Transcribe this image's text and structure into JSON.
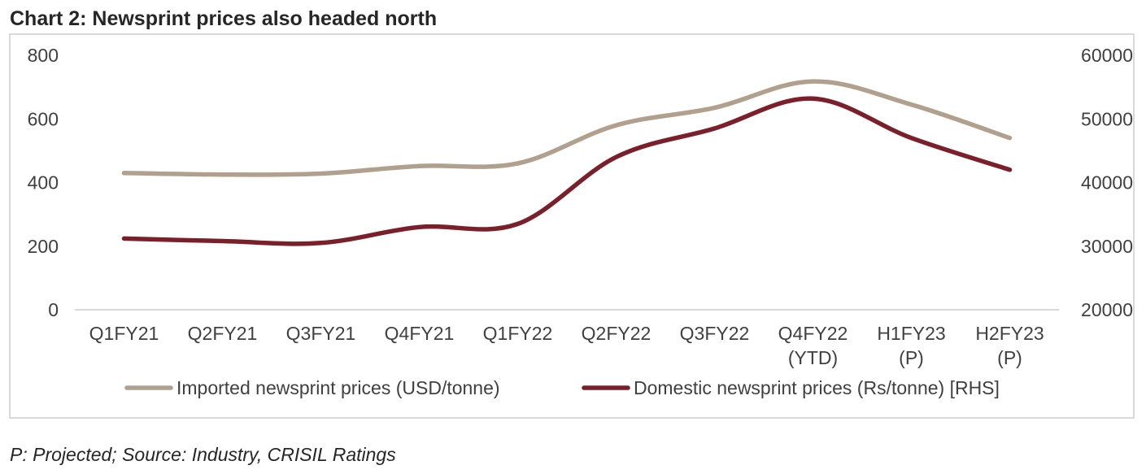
{
  "chart_title": "Chart 2: Newsprint prices also headed north",
  "footnote": "P: Projected; Source: Industry, CRISIL Ratings",
  "chart_data": {
    "type": "line",
    "title": "Chart 2: Newsprint prices also headed north",
    "categories": [
      "Q1FY21",
      "Q2FY21",
      "Q3FY21",
      "Q4FY21",
      "Q1FY22",
      "Q2FY22",
      "Q3FY22",
      "Q4FY22 (YTD)",
      "H1FY23 (P)",
      "H2FY23 (P)"
    ],
    "category_lines": [
      [
        "Q1FY21"
      ],
      [
        "Q2FY21"
      ],
      [
        "Q3FY21"
      ],
      [
        "Q4FY21"
      ],
      [
        "Q1FY22"
      ],
      [
        "Q2FY22"
      ],
      [
        "Q3FY22"
      ],
      [
        "Q4FY22",
        "(YTD)"
      ],
      [
        "H1FY23",
        "(P)"
      ],
      [
        "H2FY23",
        "(P)"
      ]
    ],
    "ylim": [
      0,
      800
    ],
    "yticks": [
      0,
      200,
      400,
      600,
      800
    ],
    "y2lim": [
      20000,
      60000
    ],
    "y2ticks": [
      20000,
      30000,
      40000,
      50000,
      60000
    ],
    "legend_position": "bottom",
    "grid": false,
    "series": [
      {
        "name": "Imported newsprint prices (USD/tonne)",
        "axis": "left",
        "color": "#b0a08d",
        "values": [
          430,
          425,
          428,
          452,
          460,
          580,
          635,
          718,
          645,
          540
        ]
      },
      {
        "name": "Domestic newsprint prices (Rs/tonne) [RHS]",
        "axis": "right",
        "color": "#7b1f2a",
        "values": [
          31200,
          30800,
          30500,
          33000,
          33500,
          44000,
          48500,
          53200,
          47000,
          42000
        ]
      }
    ]
  }
}
